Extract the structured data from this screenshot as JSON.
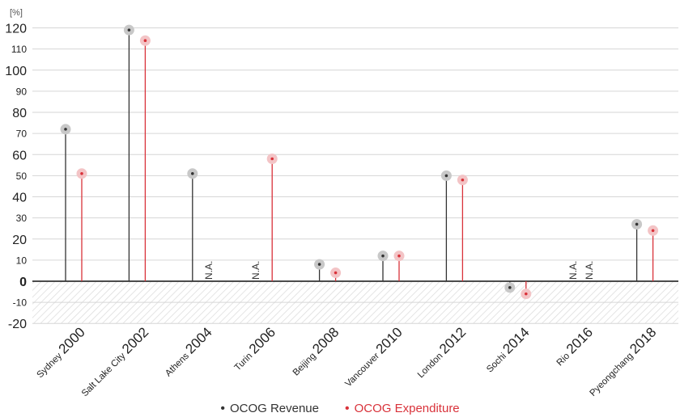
{
  "chart_data": {
    "type": "lollipop",
    "unit_label": "[%]",
    "ylim": [
      -20,
      120
    ],
    "yticks": [
      -20,
      -10,
      0,
      10,
      20,
      30,
      40,
      50,
      60,
      70,
      80,
      90,
      100,
      110,
      120
    ],
    "grid": true,
    "legend_position": "bottom-center",
    "categories": [
      {
        "city": "Sydney",
        "year": "2000"
      },
      {
        "city": "Salt Lake City",
        "year": "2002"
      },
      {
        "city": "Athens",
        "year": "2004"
      },
      {
        "city": "Turin",
        "year": "2006"
      },
      {
        "city": "Beijing",
        "year": "2008"
      },
      {
        "city": "Vancouver",
        "year": "2010"
      },
      {
        "city": "London",
        "year": "2012"
      },
      {
        "city": "Sochi",
        "year": "2014"
      },
      {
        "city": "Rio",
        "year": "2016"
      },
      {
        "city": "Pyeongchang",
        "year": "2018"
      }
    ],
    "series": [
      {
        "name": "OCOG Revenue",
        "color": "#333333",
        "halo": "#c8c8c8",
        "values": [
          72,
          119,
          51,
          null,
          8,
          12,
          50,
          -3,
          null,
          27
        ]
      },
      {
        "name": "OCOG Expenditure",
        "color": "#d9323a",
        "halo": "#f3c4c6",
        "values": [
          51,
          114,
          null,
          58,
          4,
          12,
          48,
          -6,
          null,
          24
        ]
      }
    ],
    "missing_label": "N.A."
  },
  "legend": {
    "revenue_label": "OCOG Revenue",
    "expenditure_label": "OCOG Expenditure",
    "revenue_color": "#333333",
    "expenditure_color": "#d9323a"
  }
}
